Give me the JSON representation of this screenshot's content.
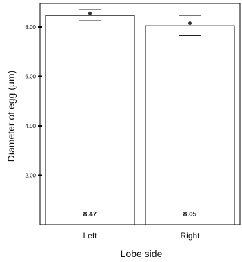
{
  "chart_data": {
    "type": "bar",
    "xlabel": "Lobe side",
    "ylabel": "Diameter of egg (μm)",
    "categories": [
      "Left",
      "Right"
    ],
    "values": [
      8.47,
      8.05
    ],
    "value_labels": [
      "8.47",
      "8.05"
    ],
    "point_values": [
      8.55,
      8.15
    ],
    "error_low": [
      8.25,
      7.65
    ],
    "error_high": [
      8.7,
      8.47
    ],
    "yticks": [
      2.0,
      4.0,
      6.0,
      8.0
    ],
    "ytick_labels": [
      "2.00",
      "4.00",
      "6.00",
      "8.00"
    ],
    "ylim": [
      0,
      8.95
    ],
    "grid": false,
    "colors": {
      "bar_fill": "#ffffff",
      "bar_stroke": "#000000",
      "error": "#222222",
      "point": "#333333"
    }
  }
}
